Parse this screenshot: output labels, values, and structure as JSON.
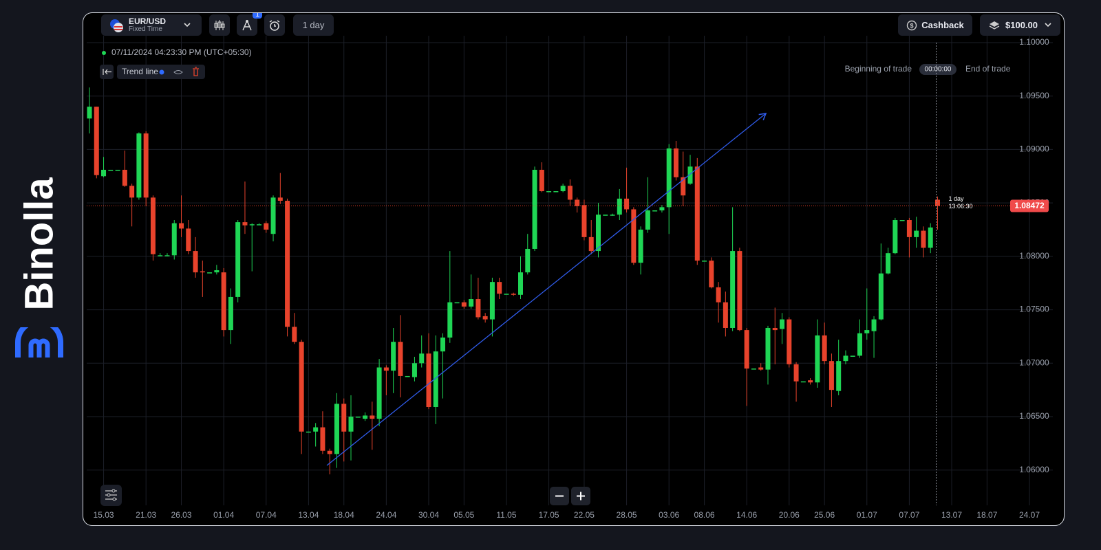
{
  "brand": "Binolla",
  "toolbar": {
    "asset": "EUR/USD",
    "mode": "Fixed Time",
    "badge": 1,
    "timeframe": "1 day",
    "cashback": "Cashback",
    "balance": "$100.00"
  },
  "chart_data": {
    "type": "candlestick",
    "timestamp": "07/11/2024 04:23:30 PM (UTC+05:30)",
    "drawing_tool": "Trend line",
    "trade_start": "Beginning of trade",
    "trade_timer": "00:00:00",
    "trade_end": "End of trade",
    "candle_timeframe": "1 day",
    "countdown": "13:06:30",
    "current_price": 1.08472,
    "up_color": "#1fd655",
    "down_color": "#e8432c",
    "grid": true,
    "ylim": [
      1.0567,
      1.1
    ],
    "yticks": [
      {
        "value": 1.06,
        "label": "1.06000"
      },
      {
        "value": 1.065,
        "label": "1.06500"
      },
      {
        "value": 1.07,
        "label": "1.07000"
      },
      {
        "value": 1.075,
        "label": "1.07500"
      },
      {
        "value": 1.08,
        "label": "1.08000"
      },
      {
        "value": 1.085,
        "label": "1.08500"
      },
      {
        "value": 1.09,
        "label": "1.09000"
      },
      {
        "value": 1.095,
        "label": "1.09500"
      },
      {
        "value": 1.1,
        "label": "1.10000"
      }
    ],
    "categories": [
      null,
      null,
      "15.03",
      null,
      null,
      null,
      null,
      null,
      "21.03",
      null,
      null,
      null,
      null,
      "26.03",
      null,
      null,
      null,
      null,
      null,
      "01.04",
      null,
      null,
      null,
      null,
      null,
      "07.04",
      null,
      null,
      null,
      null,
      null,
      "13.04",
      null,
      null,
      null,
      null,
      "18.04",
      null,
      null,
      null,
      null,
      null,
      "24.04",
      null,
      null,
      null,
      null,
      null,
      "30.04",
      null,
      null,
      null,
      null,
      "05.05",
      null,
      null,
      null,
      null,
      null,
      "11.05",
      null,
      null,
      null,
      null,
      null,
      "17.05",
      null,
      null,
      null,
      null,
      "22.05",
      null,
      null,
      null,
      null,
      null,
      "28.05",
      null,
      null,
      null,
      null,
      null,
      "03.06",
      null,
      null,
      null,
      null,
      "08.06",
      null,
      null,
      null,
      null,
      null,
      "14.06",
      null,
      null,
      null,
      null,
      null,
      "20.06",
      null,
      null,
      null,
      null,
      "25.06",
      null,
      null,
      null,
      null,
      null,
      "01.07",
      null,
      null,
      null,
      null,
      null,
      "07.07",
      null,
      null,
      null,
      null,
      null,
      "13.07",
      null,
      null,
      null,
      null,
      "18.07",
      null,
      null,
      null,
      null,
      null,
      "24.07"
    ],
    "open": [
      1.0929,
      1.094,
      1.0875,
      1.0881,
      1.0881,
      1.0881,
      1.0866,
      1.0855,
      1.0915,
      1.0855,
      1.0801,
      1.0801,
      1.0801,
      1.0831,
      1.0826,
      1.0805,
      1.0786,
      1.0785,
      1.0785,
      1.0785,
      1.0731,
      1.0762,
      1.0832,
      1.083,
      1.083,
      1.0831,
      1.0821,
      1.0855,
      1.0852,
      1.0734,
      1.072,
      1.0636,
      1.0636,
      1.064,
      1.0618,
      1.0615,
      1.0662,
      1.0636,
      1.065,
      1.0648,
      1.0651,
      1.0648,
      1.0696,
      1.0693,
      1.072,
      1.0688,
      1.0687,
      1.07,
      1.0709,
      1.0659,
      1.0711,
      1.0724,
      1.0757,
      1.0757,
      1.0753,
      1.076,
      1.0744,
      1.0741,
      1.0776,
      1.0765,
      1.0765,
      1.0764,
      1.0785,
      1.0807,
      1.0881,
      1.0861,
      1.0861,
      1.0861,
      1.0866,
      1.0853,
      1.0848,
      1.0818,
      1.0805,
      1.0839,
      1.0839,
      1.0839,
      1.0854,
      1.0844,
      1.0794,
      1.0825,
      1.0843,
      1.0843,
      1.0846,
      1.0901,
      1.0874,
      1.0868,
      1.0884,
      1.0796,
      1.0796,
      1.0771,
      1.0757,
      1.0733,
      1.0805,
      1.0731,
      1.0695,
      1.0696,
      1.0694,
      1.0733,
      1.0732,
      1.0741,
      1.0699,
      1.0683,
      1.0684,
      1.0682,
      1.0726,
      1.0702,
      1.0674,
      1.0702,
      1.0707,
      1.0707,
      1.0728,
      1.073,
      1.0741,
      1.0784,
      1.0803,
      1.0834,
      1.0834,
      1.0818,
      1.0824,
      1.0808,
      1.0853,
      null,
      null,
      null,
      null,
      null,
      null,
      null,
      null,
      null,
      null,
      null,
      null,
      null
    ],
    "high": [
      1.0958,
      1.094,
      1.0893,
      1.0881,
      1.0881,
      1.0899,
      1.0868,
      1.0916,
      1.0917,
      1.0857,
      1.0803,
      1.0803,
      1.0834,
      1.0857,
      1.0834,
      1.0818,
      1.0796,
      1.0785,
      1.0792,
      1.0789,
      1.077,
      1.0834,
      1.087,
      1.0831,
      1.0831,
      1.0833,
      1.0857,
      1.0878,
      1.0854,
      1.0747,
      1.0722,
      1.0636,
      1.0644,
      1.0655,
      1.062,
      1.0672,
      1.0667,
      1.067,
      1.065,
      1.0654,
      1.0664,
      1.0704,
      1.0698,
      1.0733,
      1.0745,
      1.0688,
      1.0706,
      1.0726,
      1.0728,
      1.0726,
      1.0728,
      1.0805,
      1.0757,
      1.0759,
      1.0783,
      1.078,
      1.0747,
      1.078,
      1.078,
      1.0765,
      1.0766,
      1.08,
      1.0821,
      1.0884,
      1.0888,
      1.0861,
      1.0861,
      1.0868,
      1.0872,
      1.0855,
      1.0853,
      1.0834,
      1.085,
      1.0839,
      1.084,
      1.0863,
      1.0883,
      1.0846,
      1.0828,
      1.0874,
      1.0843,
      1.0848,
      1.0905,
      1.0908,
      1.0898,
      1.0895,
      1.0892,
      1.0796,
      1.0799,
      1.0776,
      1.0767,
      1.0846,
      1.0808,
      1.0733,
      1.0695,
      1.07,
      1.0735,
      1.0752,
      1.0747,
      1.0743,
      1.0701,
      1.0683,
      1.0686,
      1.0741,
      1.0738,
      1.0709,
      1.0722,
      1.0712,
      1.0707,
      1.0741,
      1.077,
      1.0744,
      1.0812,
      1.0808,
      1.0836,
      1.0834,
      1.0836,
      1.0837,
      1.0828,
      1.0831,
      1.0856,
      null,
      null,
      null,
      null,
      null,
      null,
      null,
      null,
      null,
      null,
      null,
      null,
      null
    ],
    "low": [
      1.0915,
      1.0873,
      1.0874,
      1.0881,
      1.0881,
      1.0865,
      1.0828,
      1.0853,
      1.0847,
      1.0796,
      1.08,
      1.08,
      1.0797,
      1.0818,
      1.0802,
      1.078,
      1.0762,
      1.0785,
      1.0783,
      1.0725,
      1.0718,
      1.0757,
      1.0821,
      1.0786,
      1.083,
      1.0822,
      1.0814,
      1.0849,
      1.0725,
      1.0718,
      1.0615,
      1.0636,
      1.0622,
      1.0615,
      1.0596,
      1.0602,
      1.0608,
      1.0609,
      1.065,
      1.0646,
      1.0619,
      1.0641,
      1.067,
      1.0672,
      1.0668,
      1.0688,
      1.0683,
      1.0696,
      1.0657,
      1.0643,
      1.0667,
      1.0719,
      1.0757,
      1.0751,
      1.0751,
      1.0741,
      1.0738,
      1.0725,
      1.076,
      1.0765,
      1.0763,
      1.076,
      1.0783,
      1.0805,
      1.086,
      1.0861,
      1.0861,
      1.086,
      1.0847,
      1.0841,
      1.0815,
      1.0802,
      1.0799,
      1.0839,
      1.0838,
      1.0834,
      1.0841,
      1.0792,
      1.0783,
      1.0822,
      1.0843,
      1.0841,
      1.0821,
      1.0871,
      1.0847,
      1.0867,
      1.0792,
      1.0796,
      1.077,
      1.0738,
      1.0725,
      1.073,
      1.073,
      1.066,
      1.0695,
      1.0693,
      1.068,
      1.0699,
      1.0718,
      1.0696,
      1.0664,
      1.0683,
      1.068,
      1.0677,
      1.0699,
      1.0659,
      1.067,
      1.0699,
      1.0707,
      1.0705,
      1.0722,
      1.0705,
      1.074,
      1.0783,
      1.0802,
      1.0834,
      1.0799,
      1.0808,
      1.0799,
      1.0803,
      1.0825,
      null,
      null,
      null,
      null,
      null,
      null,
      null,
      null,
      null,
      null,
      null,
      null,
      null
    ],
    "close": [
      1.094,
      1.0876,
      1.0881,
      1.0881,
      1.0881,
      1.0866,
      1.0855,
      1.0915,
      1.0855,
      1.0802,
      1.0801,
      1.0801,
      1.0831,
      1.0826,
      1.0805,
      1.0785,
      1.0785,
      1.0785,
      1.0787,
      1.0731,
      1.0762,
      1.0832,
      1.0829,
      1.083,
      1.083,
      1.0825,
      1.0855,
      1.0852,
      1.0734,
      1.072,
      1.0636,
      1.0636,
      1.064,
      1.0618,
      1.0615,
      1.0662,
      1.0636,
      1.065,
      1.065,
      1.0651,
      1.0648,
      1.0696,
      1.0693,
      1.072,
      1.0688,
      1.0688,
      1.07,
      1.0709,
      1.0659,
      1.0711,
      1.0724,
      1.0757,
      1.0757,
      1.0753,
      1.076,
      1.0743,
      1.0741,
      1.0776,
      1.0765,
      1.0765,
      1.0764,
      1.0785,
      1.0807,
      1.0881,
      1.0861,
      1.0861,
      1.0861,
      1.0866,
      1.0853,
      1.0847,
      1.0818,
      1.0805,
      1.0839,
      1.0839,
      1.0839,
      1.0854,
      1.0844,
      1.0794,
      1.0825,
      1.0843,
      1.0843,
      1.0846,
      1.0901,
      1.0874,
      1.0857,
      1.0884,
      1.0796,
      1.0796,
      1.0771,
      1.0757,
      1.0733,
      1.0805,
      1.0731,
      1.0695,
      1.0695,
      1.0694,
      1.0733,
      1.0731,
      1.0741,
      1.0699,
      1.0683,
      1.0683,
      1.0682,
      1.0726,
      1.0702,
      1.0675,
      1.0702,
      1.0707,
      1.0707,
      1.0728,
      1.0731,
      1.0741,
      1.0784,
      1.0803,
      1.0834,
      1.0834,
      1.0818,
      1.0824,
      1.0808,
      1.0827,
      1.08472,
      null,
      null,
      null,
      null,
      null,
      null,
      null,
      null,
      null,
      null,
      null,
      null,
      null
    ]
  }
}
